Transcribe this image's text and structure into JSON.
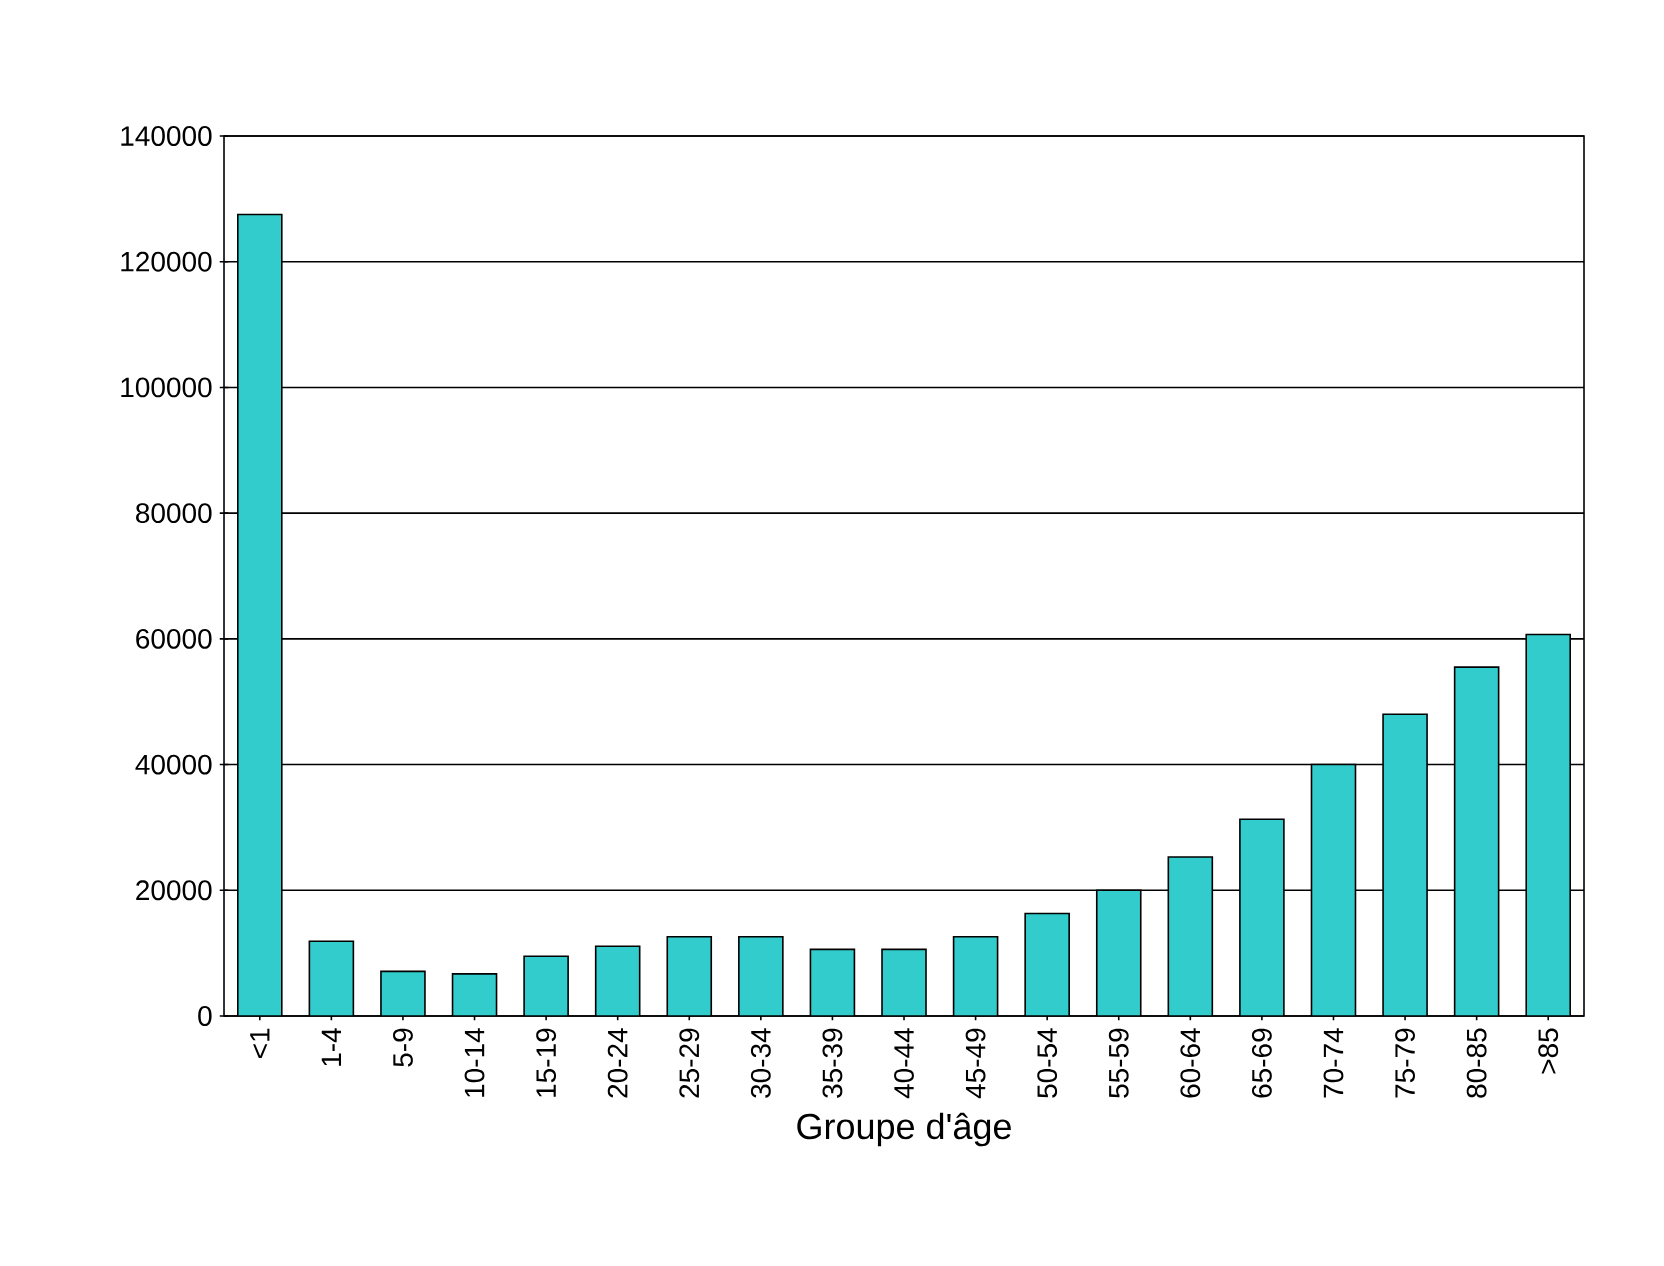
{
  "chart_data": {
    "type": "bar",
    "xlabel": "Groupe d'âge",
    "categories": [
      "<1",
      "1-4",
      "5-9",
      "10-14",
      "15-19",
      "20-24",
      "25-29",
      "30-34",
      "35-39",
      "40-44",
      "45-49",
      "50-54",
      "55-59",
      "60-64",
      "65-69",
      "70-74",
      "75-79",
      "80-85",
      ">85"
    ],
    "values": [
      127500,
      11900,
      7100,
      6700,
      9500,
      11100,
      12600,
      12600,
      10600,
      10600,
      12600,
      16300,
      20000,
      25300,
      31300,
      40000,
      48000,
      55500,
      60700
    ],
    "color": "#33cccc",
    "ylim": [
      0,
      140000
    ],
    "yticks": [
      0,
      20000,
      40000,
      60000,
      80000,
      100000,
      120000,
      140000
    ],
    "grid": "y"
  }
}
